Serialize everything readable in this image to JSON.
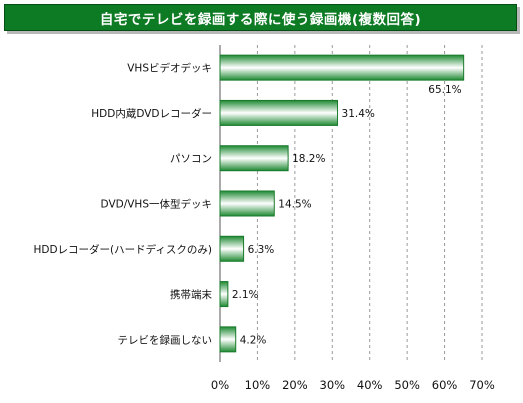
{
  "header": {
    "title": "自宅でテレビを録画する際に使う録画機(複数回答)"
  },
  "colors": {
    "title_bg": "#0d7a24",
    "bar_edge": "#1a7a2c",
    "bar_light": "#ffffff"
  },
  "chart_data": {
    "type": "bar",
    "orientation": "horizontal",
    "title": "自宅でテレビを録画する際に使う録画機(複数回答)",
    "categories": [
      "VHSビデオデッキ",
      "HDD内蔵DVDレコーダー",
      "パソコン",
      "DVD/VHS一体型デッキ",
      "HDDレコーダー(ハードディスクのみ)",
      "携帯端末",
      "テレビを録画しない"
    ],
    "values": [
      65.1,
      31.4,
      18.2,
      14.5,
      6.3,
      2.1,
      4.2
    ],
    "value_labels": [
      "65.1%",
      "31.4%",
      "18.2%",
      "14.5%",
      "6.3%",
      "2.1%",
      "4.2%"
    ],
    "xlim": [
      0,
      70
    ],
    "xticks": [
      "0%",
      "10%",
      "20%",
      "30%",
      "40%",
      "50%",
      "60%",
      "70%"
    ],
    "grid": true
  }
}
